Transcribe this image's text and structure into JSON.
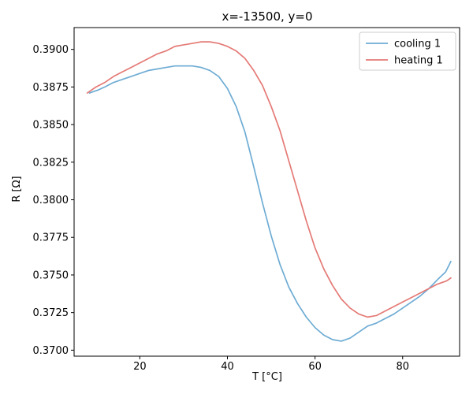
{
  "chart_data": {
    "type": "line",
    "title": "x=-13500, y=0",
    "xlabel": "T [°C]",
    "ylabel": "R [Ω]",
    "xlim": [
      5,
      93
    ],
    "ylim": [
      0.3696,
      0.39145
    ],
    "xticks": [
      20,
      40,
      60,
      80
    ],
    "xtick_labels": [
      "20",
      "40",
      "60",
      "80"
    ],
    "yticks": [
      0.37,
      0.3725,
      0.375,
      0.3775,
      0.38,
      0.3825,
      0.385,
      0.3875,
      0.39
    ],
    "ytick_labels": [
      "0.3700",
      "0.3725",
      "0.3750",
      "0.3775",
      "0.3800",
      "0.3825",
      "0.3850",
      "0.3875",
      "0.3900"
    ],
    "grid": false,
    "legend_position": "top-right",
    "series": [
      {
        "name": "cooling 1",
        "color": "#6eacd4",
        "x": [
          91.0,
          90.5,
          89.8,
          88.0,
          86.0,
          84.0,
          82.0,
          80.0,
          78.0,
          76.0,
          74.0,
          72.0,
          70.0,
          68.0,
          66.0,
          64.0,
          62.0,
          60.0,
          58.0,
          56.0,
          54.0,
          52.0,
          50.0,
          48.0,
          46.0,
          44.0,
          42.0,
          40.0,
          38.0,
          36.0,
          34.0,
          32.0,
          30.0,
          28.0,
          26.0,
          24.0,
          22.0,
          20.0,
          18.0,
          16.0,
          14.0,
          12.0,
          10.5,
          9.5,
          8.5
        ],
        "y": [
          0.3759,
          0.3756,
          0.3752,
          0.3747,
          0.3741,
          0.3736,
          0.3732,
          0.3728,
          0.3724,
          0.3721,
          0.3718,
          0.3716,
          0.3712,
          0.3708,
          0.3706,
          0.3707,
          0.371,
          0.3715,
          0.3722,
          0.3731,
          0.3742,
          0.3757,
          0.3776,
          0.3798,
          0.3822,
          0.3845,
          0.3862,
          0.3874,
          0.3882,
          0.3886,
          0.3888,
          0.3889,
          0.3889,
          0.3889,
          0.3888,
          0.3887,
          0.3886,
          0.3884,
          0.3882,
          0.388,
          0.3878,
          0.3875,
          0.3873,
          0.3872,
          0.3871
        ]
      },
      {
        "name": "heating 1",
        "color": "#e47a76",
        "x": [
          8.0,
          9.0,
          10.0,
          12.0,
          14.0,
          16.0,
          18.0,
          20.0,
          22.0,
          24.0,
          26.0,
          28.0,
          30.0,
          32.0,
          34.0,
          36.0,
          38.0,
          40.0,
          42.0,
          44.0,
          46.0,
          48.0,
          50.0,
          52.0,
          54.0,
          56.0,
          58.0,
          60.0,
          62.0,
          64.0,
          66.0,
          68.0,
          70.0,
          72.0,
          74.0,
          76.0,
          78.0,
          80.0,
          82.0,
          84.0,
          86.0,
          88.0,
          90.0,
          91.0
        ],
        "y": [
          0.3871,
          0.3873,
          0.3875,
          0.3878,
          0.3882,
          0.3885,
          0.3888,
          0.3891,
          0.3894,
          0.3897,
          0.3899,
          0.3902,
          0.3903,
          0.3904,
          0.3905,
          0.3905,
          0.3904,
          0.3902,
          0.3899,
          0.3894,
          0.3886,
          0.3876,
          0.3862,
          0.3846,
          0.3826,
          0.3806,
          0.3786,
          0.3768,
          0.3754,
          0.3743,
          0.3734,
          0.3728,
          0.3724,
          0.3722,
          0.3723,
          0.3726,
          0.3729,
          0.3732,
          0.3735,
          0.3738,
          0.3741,
          0.3744,
          0.3746,
          0.3748
        ]
      }
    ]
  }
}
